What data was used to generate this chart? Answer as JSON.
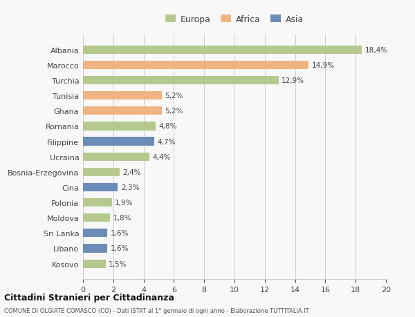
{
  "categories": [
    "Albania",
    "Marocco",
    "Turchia",
    "Tunisia",
    "Ghana",
    "Romania",
    "Filippine",
    "Ucraina",
    "Bosnia-Erzegovina",
    "Cina",
    "Polonia",
    "Moldova",
    "Sri Lanka",
    "Libano",
    "Kosovo"
  ],
  "values": [
    18.4,
    14.9,
    12.9,
    5.2,
    5.2,
    4.8,
    4.7,
    4.4,
    2.4,
    2.3,
    1.9,
    1.8,
    1.6,
    1.6,
    1.5
  ],
  "labels": [
    "18,4%",
    "14,9%",
    "12,9%",
    "5,2%",
    "5,2%",
    "4,8%",
    "4,7%",
    "4,4%",
    "2,4%",
    "2,3%",
    "1,9%",
    "1,8%",
    "1,6%",
    "1,6%",
    "1,5%"
  ],
  "continents": [
    "Europa",
    "Africa",
    "Europa",
    "Africa",
    "Africa",
    "Europa",
    "Asia",
    "Europa",
    "Europa",
    "Asia",
    "Europa",
    "Europa",
    "Asia",
    "Asia",
    "Europa"
  ],
  "colors": {
    "Europa": "#b5c98e",
    "Africa": "#f0b482",
    "Asia": "#6b8cb8"
  },
  "legend_labels": [
    "Europa",
    "Africa",
    "Asia"
  ],
  "legend_colors": [
    "#b5c98e",
    "#f0b482",
    "#6b8cb8"
  ],
  "xlim": [
    0,
    20
  ],
  "xticks": [
    0,
    2,
    4,
    6,
    8,
    10,
    12,
    14,
    16,
    18,
    20
  ],
  "title1": "Cittadini Stranieri per Cittadinanza",
  "title2": "COMUNE DI OLGIATE COMASCO (CO) - Dati ISTAT al 1° gennaio di ogni anno - Elaborazione TUTTITALIA.IT",
  "bg_color": "#f8f8f8",
  "grid_color": "#cccccc",
  "bar_height": 0.55
}
